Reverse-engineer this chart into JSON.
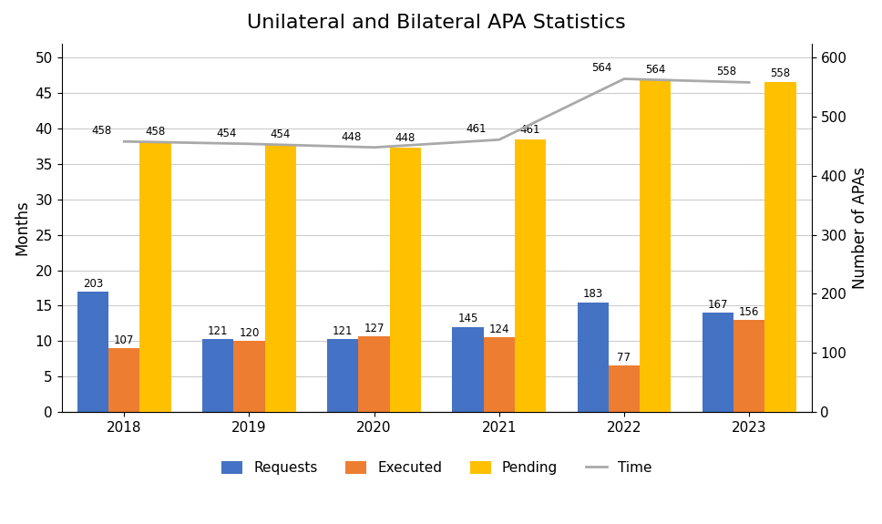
{
  "title": "Unilateral and Bilateral APA Statistics",
  "years": [
    "2018",
    "2019",
    "2020",
    "2021",
    "2022",
    "2023"
  ],
  "requests_months": [
    17,
    10.3,
    10.3,
    12,
    15.5,
    14
  ],
  "executed_months": [
    9,
    10,
    10.7,
    10.5,
    6.5,
    13
  ],
  "pending_apas": [
    458,
    454,
    448,
    461,
    564,
    558
  ],
  "time_apas": [
    458,
    454,
    448,
    461,
    564,
    558
  ],
  "requests_labels": [
    203,
    121,
    121,
    145,
    183,
    167
  ],
  "executed_labels": [
    107,
    120,
    127,
    124,
    77,
    156
  ],
  "pending_labels": [
    458,
    454,
    448,
    461,
    564,
    558
  ],
  "time_labels": [
    458,
    454,
    448,
    461,
    564,
    558
  ],
  "bar_width": 0.25,
  "colors": {
    "requests": "#4472C4",
    "executed": "#ED7D31",
    "pending": "#FFC000",
    "time": "#A9A9A9"
  },
  "ylim_left": [
    0,
    52
  ],
  "ylim_right": [
    0,
    624
  ],
  "ylabel_left": "Months",
  "ylabel_right": "Number of APAs",
  "legend_labels": [
    "Requests",
    "Executed",
    "Pending",
    "Time"
  ],
  "yticks_left": [
    0,
    5,
    10,
    15,
    20,
    25,
    30,
    35,
    40,
    45,
    50
  ],
  "yticks_right": [
    0,
    100,
    200,
    300,
    400,
    500,
    600
  ],
  "background_color": "#ffffff",
  "title_fontsize": 16,
  "label_fontsize": 8.5,
  "axis_fontsize": 11
}
